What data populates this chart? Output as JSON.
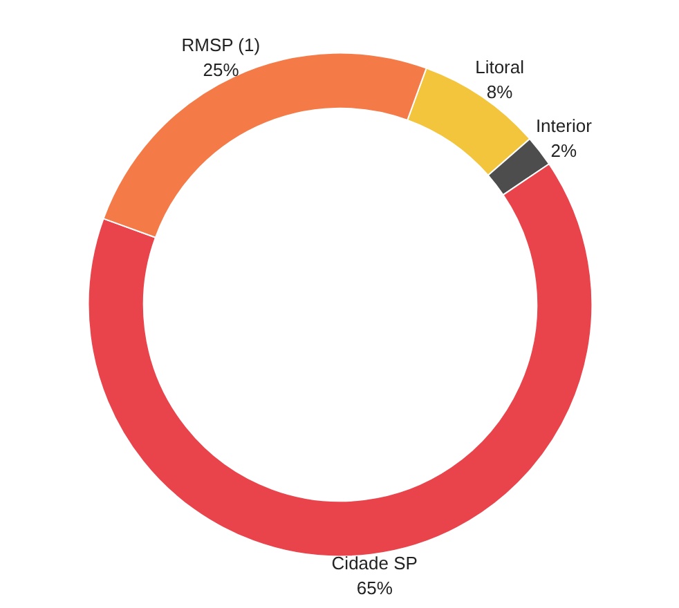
{
  "chart_data": {
    "type": "donut",
    "categories": [
      "Litoral",
      "Interior",
      "Cidade SP",
      "RMSP (1)"
    ],
    "values": [
      8,
      2,
      65,
      25
    ],
    "colors": [
      "#f2c53d",
      "#4d4d4d",
      "#e9434b",
      "#f47b48"
    ],
    "value_labels": [
      "8%",
      "2%",
      "65%",
      "25%"
    ]
  }
}
